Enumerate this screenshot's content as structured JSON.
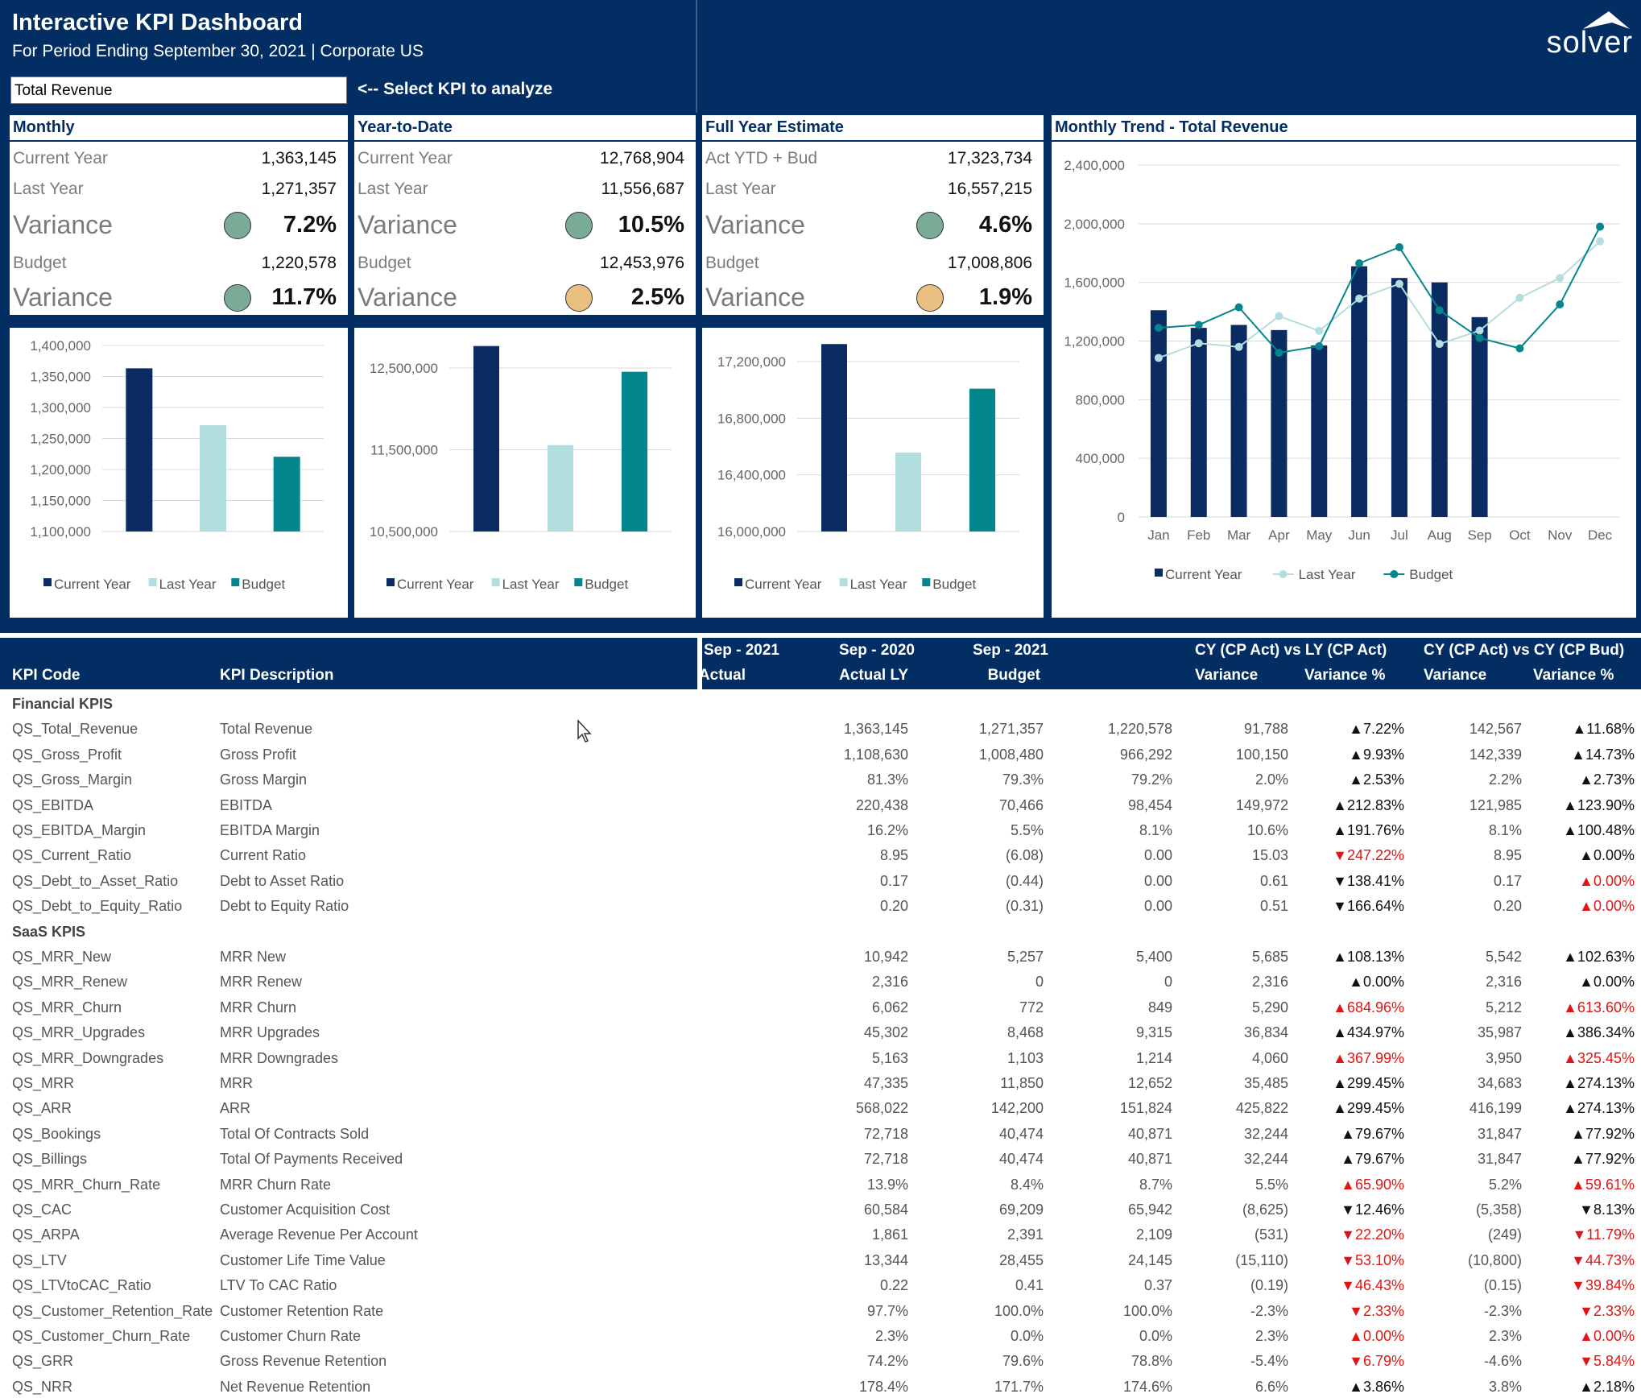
{
  "header": {
    "title": "Interactive KPI Dashboard",
    "subtitle": "For Period Ending September 30, 2021 | Corporate US",
    "logo_text": "solver"
  },
  "kpi_selector": {
    "value": "Total Revenue",
    "hint": "<-- Select KPI to analyze"
  },
  "panels": {
    "monthly": {
      "title": "Monthly",
      "current_year_label": "Current Year",
      "current_year": "1,363,145",
      "last_year_label": "Last Year",
      "last_year": "1,271,357",
      "variance_label": "Variance",
      "variance_ly": "7.2%",
      "budget_label": "Budget",
      "budget": "1,220,578",
      "variance_bud": "11.7%",
      "status_ly": "green",
      "status_bud": "green"
    },
    "ytd": {
      "title": "Year-to-Date",
      "current_year_label": "Current Year",
      "current_year": "12,768,904",
      "last_year_label": "Last Year",
      "last_year": "11,556,687",
      "variance_label": "Variance",
      "variance_ly": "10.5%",
      "budget_label": "Budget",
      "budget": "12,453,976",
      "variance_bud": "2.5%",
      "status_ly": "green",
      "status_bud": "amber"
    },
    "fye": {
      "title": "Full Year Estimate",
      "current_year_label": "Act YTD + Bud",
      "current_year": "17,323,734",
      "last_year_label": "Last Year",
      "last_year": "16,557,215",
      "variance_label": "Variance",
      "variance_ly": "4.6%",
      "budget_label": "Budget",
      "budget": "17,008,806",
      "variance_bud": "1.9%",
      "status_ly": "green",
      "status_bud": "amber"
    },
    "trend": {
      "title": "Monthly Trend - Total Revenue"
    }
  },
  "colors": {
    "navy": "#022e63",
    "current_year": "#0b2b63",
    "last_year": "#b3dedf",
    "budget": "#04868c",
    "status_green": "#79ab96",
    "status_amber": "#e9c07f",
    "negative_red": "#e01515"
  },
  "chart_data": [
    {
      "type": "bar",
      "categories": [
        "Current Year",
        "Last Year",
        "Budget"
      ],
      "values": [
        1363145,
        1271357,
        1220578
      ],
      "ylim": [
        1100000,
        1400000
      ],
      "yticks": [
        "1,100,000",
        "1,150,000",
        "1,200,000",
        "1,250,000",
        "1,300,000",
        "1,350,000",
        "1,400,000"
      ],
      "legend": [
        "Current Year",
        "Last Year",
        "Budget"
      ]
    },
    {
      "type": "bar",
      "categories": [
        "Current Year",
        "Last Year",
        "Budget"
      ],
      "values": [
        12768904,
        11556687,
        12453976
      ],
      "ylim": [
        10500000,
        12500000
      ],
      "yticks": [
        "10,500,000",
        "11,500,000",
        "12,500,000"
      ],
      "legend": [
        "Current Year",
        "Last Year",
        "Budget"
      ]
    },
    {
      "type": "bar",
      "categories": [
        "Current Year",
        "Last Year",
        "Budget"
      ],
      "values": [
        17323734,
        16557215,
        17008806
      ],
      "ylim": [
        16000000,
        17200000
      ],
      "yticks": [
        "16,000,000",
        "16,400,000",
        "16,800,000",
        "17,200,000"
      ],
      "legend": [
        "Current Year",
        "Last Year",
        "Budget"
      ]
    },
    {
      "type": "bar",
      "categories": [
        "Jan",
        "Feb",
        "Mar",
        "Apr",
        "May",
        "Jun",
        "Jul",
        "Aug",
        "Sep",
        "Oct",
        "Nov",
        "Dec"
      ],
      "series": [
        {
          "name": "Current Year",
          "type": "bar",
          "values": [
            1410000,
            1290000,
            1310000,
            1275000,
            1170000,
            1710000,
            1630000,
            1600000,
            1363145,
            null,
            null,
            null
          ]
        },
        {
          "name": "Last Year",
          "type": "line",
          "values": [
            1085000,
            1185000,
            1160000,
            1370000,
            1270000,
            1490000,
            1590000,
            1180000,
            1271357,
            1495000,
            1630000,
            1880000
          ]
        },
        {
          "name": "Budget",
          "type": "line",
          "values": [
            1290000,
            1310000,
            1430000,
            1120000,
            1165000,
            1730000,
            1840000,
            1410000,
            1220578,
            1150000,
            1450000,
            1980000
          ]
        }
      ],
      "ylim": [
        0,
        2400000
      ],
      "yticks": [
        "0",
        "400,000",
        "800,000",
        "1,200,000",
        "1,600,000",
        "2,000,000",
        "2,400,000"
      ],
      "legend": [
        "Current Year",
        "Last Year",
        "Budget"
      ]
    }
  ],
  "table": {
    "headers": {
      "kpi_code": "KPI Code",
      "kpi_desc": "KPI Description",
      "g1_top": "Sep - 2021",
      "g1_bottom": "Actual",
      "g2_top": "Sep - 2020",
      "g2_bottom": "Actual LY",
      "g3_top": "Sep - 2021",
      "g3_bottom": "Budget",
      "g4_top": "CY (CP Act) vs LY (CP Act)",
      "g4_var": "Variance",
      "g4_pct": "Variance %",
      "g5_top": "CY (CP Act) vs CY (CP Bud)",
      "g5_var": "Variance",
      "g5_pct": "Variance %"
    },
    "rows": [
      {
        "section": "Financial KPIS"
      },
      {
        "code": "QS_Total_Revenue",
        "desc": "Total Revenue",
        "act": "1,363,145",
        "ly": "1,271,357",
        "bud": "1,220,578",
        "v1": "91,788",
        "p1": "▲7.22%",
        "r1": false,
        "v2": "142,567",
        "p2": "▲11.68%",
        "r2": false
      },
      {
        "code": "QS_Gross_Profit",
        "desc": "Gross Profit",
        "act": "1,108,630",
        "ly": "1,008,480",
        "bud": "966,292",
        "v1": "100,150",
        "p1": "▲9.93%",
        "r1": false,
        "v2": "142,339",
        "p2": "▲14.73%",
        "r2": false
      },
      {
        "code": "QS_Gross_Margin",
        "desc": "Gross Margin",
        "act": "81.3%",
        "ly": "79.3%",
        "bud": "79.2%",
        "v1": "2.0%",
        "p1": "▲2.53%",
        "r1": false,
        "v2": "2.2%",
        "p2": "▲2.73%",
        "r2": false
      },
      {
        "code": "QS_EBITDA",
        "desc": "EBITDA",
        "act": "220,438",
        "ly": "70,466",
        "bud": "98,454",
        "v1": "149,972",
        "p1": "▲212.83%",
        "r1": false,
        "v2": "121,985",
        "p2": "▲123.90%",
        "r2": false
      },
      {
        "code": "QS_EBITDA_Margin",
        "desc": "EBITDA Margin",
        "act": "16.2%",
        "ly": "5.5%",
        "bud": "8.1%",
        "v1": "10.6%",
        "p1": "▲191.76%",
        "r1": false,
        "v2": "8.1%",
        "p2": "▲100.48%",
        "r2": false
      },
      {
        "code": "QS_Current_Ratio",
        "desc": "Current Ratio",
        "act": "8.95",
        "ly": "(6.08)",
        "bud": "0.00",
        "v1": "15.03",
        "p1": "▼247.22%",
        "r1": true,
        "v2": "8.95",
        "p2": "▲0.00%",
        "r2": false
      },
      {
        "code": "QS_Debt_to_Asset_Ratio",
        "desc": "Debt to Asset Ratio",
        "act": "0.17",
        "ly": "(0.44)",
        "bud": "0.00",
        "v1": "0.61",
        "p1": "▼138.41%",
        "r1": false,
        "v2": "0.17",
        "p2": "▲0.00%",
        "r2": true
      },
      {
        "code": "QS_Debt_to_Equity_Ratio",
        "desc": "Debt to Equity Ratio",
        "act": "0.20",
        "ly": "(0.31)",
        "bud": "0.00",
        "v1": "0.51",
        "p1": "▼166.64%",
        "r1": false,
        "v2": "0.20",
        "p2": "▲0.00%",
        "r2": true
      },
      {
        "section": "SaaS KPIS"
      },
      {
        "code": "QS_MRR_New",
        "desc": "MRR New",
        "act": "10,942",
        "ly": "5,257",
        "bud": "5,400",
        "v1": "5,685",
        "p1": "▲108.13%",
        "r1": false,
        "v2": "5,542",
        "p2": "▲102.63%",
        "r2": false
      },
      {
        "code": "QS_MRR_Renew",
        "desc": "MRR Renew",
        "act": "2,316",
        "ly": "0",
        "bud": "0",
        "v1": "2,316",
        "p1": "▲0.00%",
        "r1": false,
        "v2": "2,316",
        "p2": "▲0.00%",
        "r2": false
      },
      {
        "code": "QS_MRR_Churn",
        "desc": "MRR Churn",
        "act": "6,062",
        "ly": "772",
        "bud": "849",
        "v1": "5,290",
        "p1": "▲684.96%",
        "r1": true,
        "v2": "5,212",
        "p2": "▲613.60%",
        "r2": true
      },
      {
        "code": "QS_MRR_Upgrades",
        "desc": "MRR Upgrades",
        "act": "45,302",
        "ly": "8,468",
        "bud": "9,315",
        "v1": "36,834",
        "p1": "▲434.97%",
        "r1": false,
        "v2": "35,987",
        "p2": "▲386.34%",
        "r2": false
      },
      {
        "code": "QS_MRR_Downgrades",
        "desc": "MRR Downgrades",
        "act": "5,163",
        "ly": "1,103",
        "bud": "1,214",
        "v1": "4,060",
        "p1": "▲367.99%",
        "r1": true,
        "v2": "3,950",
        "p2": "▲325.45%",
        "r2": true
      },
      {
        "code": "QS_MRR",
        "desc": "MRR",
        "act": "47,335",
        "ly": "11,850",
        "bud": "12,652",
        "v1": "35,485",
        "p1": "▲299.45%",
        "r1": false,
        "v2": "34,683",
        "p2": "▲274.13%",
        "r2": false
      },
      {
        "code": "QS_ARR",
        "desc": "ARR",
        "act": "568,022",
        "ly": "142,200",
        "bud": "151,824",
        "v1": "425,822",
        "p1": "▲299.45%",
        "r1": false,
        "v2": "416,199",
        "p2": "▲274.13%",
        "r2": false
      },
      {
        "code": "QS_Bookings",
        "desc": "Total Of Contracts Sold",
        "act": "72,718",
        "ly": "40,474",
        "bud": "40,871",
        "v1": "32,244",
        "p1": "▲79.67%",
        "r1": false,
        "v2": "31,847",
        "p2": "▲77.92%",
        "r2": false
      },
      {
        "code": "QS_Billings",
        "desc": "Total Of Payments Received",
        "act": "72,718",
        "ly": "40,474",
        "bud": "40,871",
        "v1": "32,244",
        "p1": "▲79.67%",
        "r1": false,
        "v2": "31,847",
        "p2": "▲77.92%",
        "r2": false
      },
      {
        "code": "QS_MRR_Churn_Rate",
        "desc": "MRR Churn Rate",
        "act": "13.9%",
        "ly": "8.4%",
        "bud": "8.7%",
        "v1": "5.5%",
        "p1": "▲65.90%",
        "r1": true,
        "v2": "5.2%",
        "p2": "▲59.61%",
        "r2": true
      },
      {
        "code": "QS_CAC",
        "desc": "Customer Acquisition Cost",
        "act": "60,584",
        "ly": "69,209",
        "bud": "65,942",
        "v1": "(8,625)",
        "p1": "▼12.46%",
        "r1": false,
        "v2": "(5,358)",
        "p2": "▼8.13%",
        "r2": false
      },
      {
        "code": "QS_ARPA",
        "desc": "Average Revenue Per Account",
        "act": "1,861",
        "ly": "2,391",
        "bud": "2,109",
        "v1": "(531)",
        "p1": "▼22.20%",
        "r1": true,
        "v2": "(249)",
        "p2": "▼11.79%",
        "r2": true
      },
      {
        "code": "QS_LTV",
        "desc": "Customer Life Time Value",
        "act": "13,344",
        "ly": "28,455",
        "bud": "24,145",
        "v1": "(15,110)",
        "p1": "▼53.10%",
        "r1": true,
        "v2": "(10,800)",
        "p2": "▼44.73%",
        "r2": true
      },
      {
        "code": "QS_LTVtoCAC_Ratio",
        "desc": "LTV To CAC Ratio",
        "act": "0.22",
        "ly": "0.41",
        "bud": "0.37",
        "v1": "(0.19)",
        "p1": "▼46.43%",
        "r1": true,
        "v2": "(0.15)",
        "p2": "▼39.84%",
        "r2": true
      },
      {
        "code": "QS_Customer_Retention_Rate",
        "desc": "Customer Retention Rate",
        "act": "97.7%",
        "ly": "100.0%",
        "bud": "100.0%",
        "v1": "-2.3%",
        "p1": "▼2.33%",
        "r1": true,
        "v2": "-2.3%",
        "p2": "▼2.33%",
        "r2": true
      },
      {
        "code": "QS_Customer_Churn_Rate",
        "desc": "Customer Churn Rate",
        "act": "2.3%",
        "ly": "0.0%",
        "bud": "0.0%",
        "v1": "2.3%",
        "p1": "▲0.00%",
        "r1": true,
        "v2": "2.3%",
        "p2": "▲0.00%",
        "r2": true
      },
      {
        "code": "QS_GRR",
        "desc": "Gross Revenue Retention",
        "act": "74.2%",
        "ly": "79.6%",
        "bud": "78.8%",
        "v1": "-5.4%",
        "p1": "▼6.79%",
        "r1": true,
        "v2": "-4.6%",
        "p2": "▼5.84%",
        "r2": true
      },
      {
        "code": "QS_NRR",
        "desc": "Net Revenue Retention",
        "act": "178.4%",
        "ly": "171.7%",
        "bud": "174.6%",
        "v1": "6.6%",
        "p1": "▲3.86%",
        "r1": false,
        "v2": "3.8%",
        "p2": "▲2.18%",
        "r2": false
      }
    ]
  }
}
